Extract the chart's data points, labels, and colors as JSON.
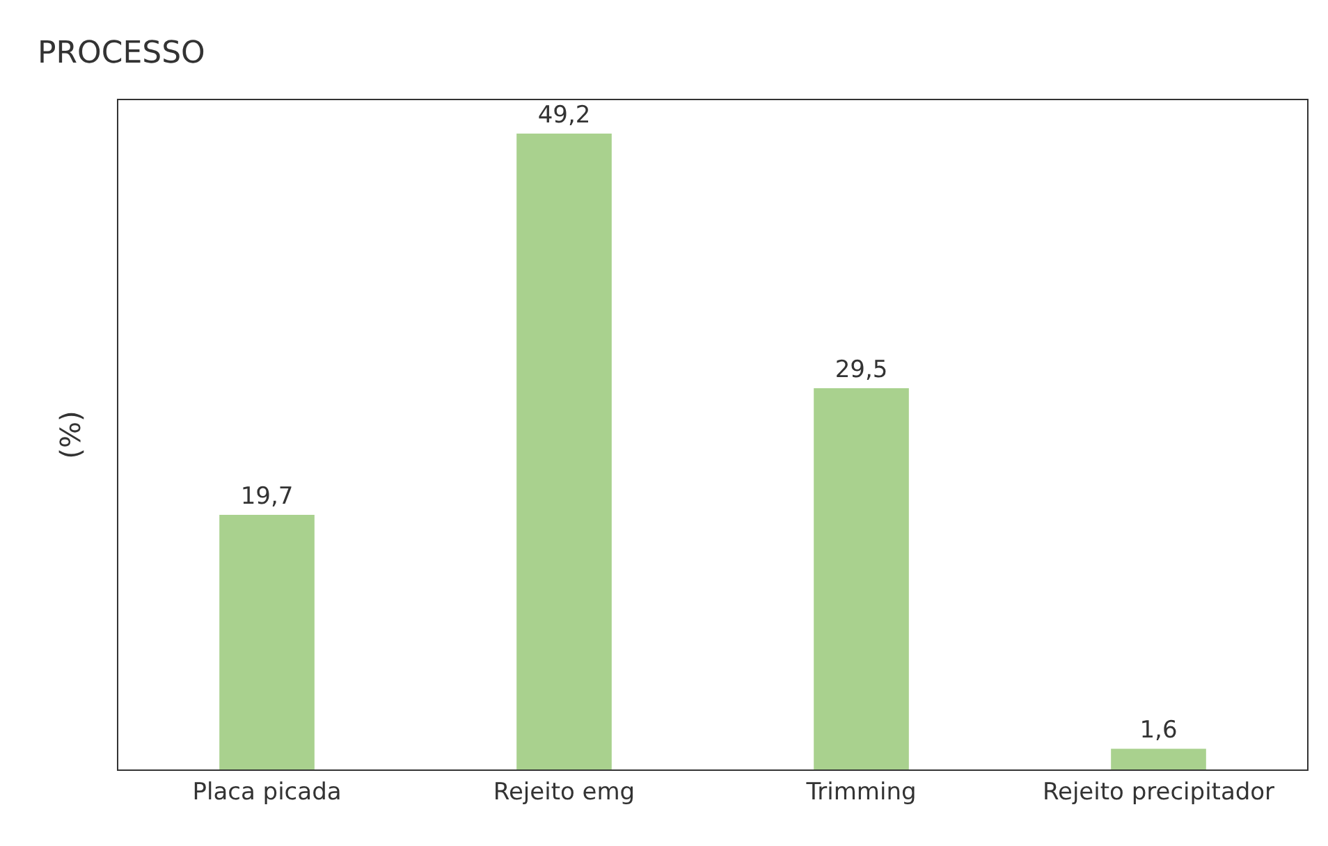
{
  "chart_data": {
    "type": "bar",
    "ylabel": "(%)",
    "annotations": [
      "PROCESSO"
    ],
    "categories": [
      "Placa picada",
      "Rejeito emg",
      "Trimming",
      "Rejeito precipitador"
    ],
    "values": [
      19.7,
      49.2,
      29.5,
      1.6
    ],
    "color": "#a9d18e",
    "value_labels": [
      "19,7",
      "49,2",
      "29,5",
      "1,6"
    ]
  }
}
